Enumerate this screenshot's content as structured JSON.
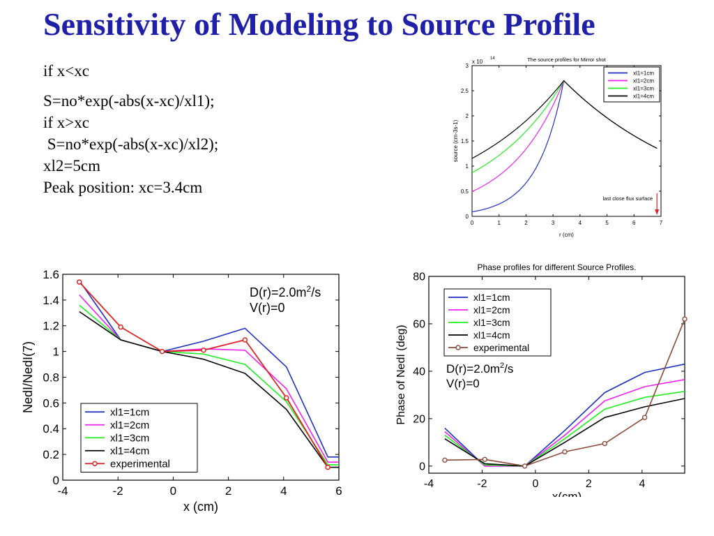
{
  "title": "Sensitivity of Modeling to Source Profile",
  "text_lines": [
    "if x<xc",
    "S=no*exp(-abs(x-xc)/xl1);",
    "if x>xc",
    " S=no*exp(-abs(x-xc)/xl2);",
    "xl2=5cm",
    "Peak position: xc=3.4cm"
  ],
  "colors": {
    "title": "#1f1fa8",
    "xl1_1cm": "#1f2fbf",
    "xl1_2cm": "#ee22ee",
    "xl1_3cm": "#22ee22",
    "xl1_4cm": "#000000",
    "exp_nedl": "#dd2222",
    "exp_phase": "#8b4a3a",
    "marker": "#dd2222"
  },
  "chart_data": [
    {
      "type": "line",
      "title": "The source profiles for Mirror shot",
      "xlabel": "r (cm)",
      "ylabel": "source (cm-3s-1)",
      "y_multiplier": "x 10",
      "y_multiplier_exp": "14",
      "xlim": [
        0,
        7
      ],
      "ylim": [
        0,
        3
      ],
      "xticks": [
        "0",
        "1",
        "2",
        "3",
        "4",
        "5",
        "6",
        "7"
      ],
      "yticks": [
        "0",
        "0.5",
        "1",
        "1.5",
        "2",
        "2.5",
        "3"
      ],
      "legend": "top-right",
      "annotation": "last close flux surface",
      "annotation_x": 6.85,
      "profile": {
        "no": 2.7,
        "xc": 3.4,
        "xl2": 5,
        "xmax": 6.85
      },
      "series": [
        {
          "name": "xl1=1cm",
          "xl1": 1,
          "color": "#1f2fbf"
        },
        {
          "name": "xl1=2cm",
          "xl1": 2,
          "color": "#ee22ee"
        },
        {
          "name": "xl1=3cm",
          "xl1": 3,
          "color": "#22ee22"
        },
        {
          "name": "xl1=4cm",
          "xl1": 4,
          "color": "#000000"
        }
      ]
    },
    {
      "type": "line",
      "title": "",
      "xlabel": "x (cm)",
      "ylabel": "NedI/NedI(7)",
      "xlim": [
        -4,
        6
      ],
      "ylim": [
        0,
        1.6
      ],
      "xticks": [
        "-4",
        "-2",
        "0",
        "2",
        "4",
        "6"
      ],
      "yticks": [
        "0",
        "0.2",
        "0.4",
        "0.6",
        "0.8",
        "1",
        "1.2",
        "1.4",
        "1.6"
      ],
      "annotation_line1": "D(r)=2.0m",
      "annotation_sup": "2",
      "annotation_line1_suffix": "/s",
      "annotation_line2": "V(r)=0",
      "legend": "bottom-left",
      "x": [
        -3.4,
        -1.9,
        -0.4,
        1.1,
        2.6,
        4.1,
        5.6,
        6.0
      ],
      "series": [
        {
          "name": "xl1=1cm",
          "color": "#1f2fbf",
          "values": [
            1.55,
            1.09,
            1.0,
            1.08,
            1.18,
            0.88,
            0.18,
            0.18
          ]
        },
        {
          "name": "xl1=2cm",
          "color": "#ee22ee",
          "values": [
            1.44,
            1.09,
            1.0,
            1.02,
            1.01,
            0.71,
            0.14,
            0.14
          ]
        },
        {
          "name": "xl1=3cm",
          "color": "#22ee22",
          "values": [
            1.36,
            1.09,
            1.0,
            0.98,
            0.9,
            0.61,
            0.12,
            0.12
          ]
        },
        {
          "name": "xl1=4cm",
          "color": "#000000",
          "values": [
            1.31,
            1.09,
            1.0,
            0.94,
            0.83,
            0.55,
            0.1,
            0.1
          ]
        }
      ],
      "experimental": {
        "name": "experimental",
        "color": "#dd2222",
        "x": [
          -3.4,
          -1.9,
          -0.4,
          1.1,
          2.6,
          4.1,
          5.6
        ],
        "values": [
          1.54,
          1.19,
          1.0,
          1.01,
          1.09,
          0.64,
          0.1
        ]
      }
    },
    {
      "type": "line",
      "title": "Phase profiles for different Source Profiles.",
      "xlabel": "x(cm)",
      "ylabel": "Phase of NedI (deg)",
      "xlim": [
        -4,
        5.6
      ],
      "ylim": [
        -3,
        80
      ],
      "xticks": [
        "-4",
        "-2",
        "0",
        "2",
        "4"
      ],
      "yticks": [
        "0",
        "20",
        "40",
        "60",
        "80"
      ],
      "annotation_line1": "D(r)=2.0m",
      "annotation_sup": "2",
      "annotation_line1_suffix": "/s",
      "annotation_line2": "V(r)=0",
      "legend": "top-left",
      "x": [
        -3.4,
        -1.9,
        -0.4,
        1.1,
        2.6,
        4.1,
        5.6
      ],
      "series": [
        {
          "name": "xl1=1cm",
          "color": "#1f2fbf",
          "values": [
            16,
            0,
            0,
            15,
            31,
            39.5,
            43
          ]
        },
        {
          "name": "xl1=2cm",
          "color": "#ee22ee",
          "values": [
            14.5,
            0,
            0,
            13,
            27.5,
            33.5,
            36.5
          ]
        },
        {
          "name": "xl1=3cm",
          "color": "#22ee22",
          "values": [
            13,
            0.5,
            0,
            11.5,
            24,
            29,
            31.5
          ]
        },
        {
          "name": "xl1=4cm",
          "color": "#000000",
          "values": [
            11.5,
            1,
            0,
            10,
            20.5,
            25,
            28.5
          ]
        }
      ],
      "experimental": {
        "name": "experimental",
        "color": "#8b4a3a",
        "x": [
          -3.4,
          -1.9,
          -0.4,
          1.1,
          2.6,
          4.1,
          5.6
        ],
        "values": [
          2.5,
          2.8,
          0,
          6,
          9.5,
          20.5,
          62
        ]
      }
    }
  ]
}
